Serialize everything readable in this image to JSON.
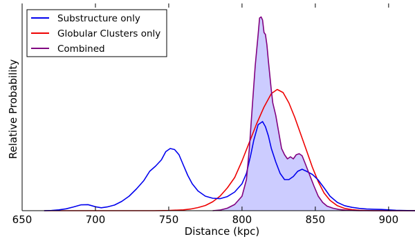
{
  "chart_data": {
    "type": "line",
    "title": "",
    "xlabel": "Distance (kpc)",
    "ylabel": "Relative Probability",
    "xlim": [
      650,
      918
    ],
    "ylim": [
      0,
      1.0
    ],
    "xticks": [
      650,
      700,
      750,
      800,
      850,
      900
    ],
    "show_yticks": false,
    "grid": false,
    "legend_position": "top-left",
    "series": [
      {
        "name": "Substructure only",
        "color": "#0000ee",
        "shaded": false,
        "points": [
          [
            665,
            0.0
          ],
          [
            670,
            0.001
          ],
          [
            675,
            0.004
          ],
          [
            680,
            0.009
          ],
          [
            685,
            0.018
          ],
          [
            690,
            0.028
          ],
          [
            695,
            0.029
          ],
          [
            700,
            0.019
          ],
          [
            704,
            0.014
          ],
          [
            708,
            0.018
          ],
          [
            713,
            0.027
          ],
          [
            718,
            0.045
          ],
          [
            723,
            0.07
          ],
          [
            728,
            0.105
          ],
          [
            733,
            0.145
          ],
          [
            737,
            0.19
          ],
          [
            741,
            0.215
          ],
          [
            745,
            0.245
          ],
          [
            748,
            0.285
          ],
          [
            751,
            0.3
          ],
          [
            754,
            0.295
          ],
          [
            757,
            0.27
          ],
          [
            760,
            0.22
          ],
          [
            763,
            0.17
          ],
          [
            766,
            0.13
          ],
          [
            770,
            0.095
          ],
          [
            775,
            0.07
          ],
          [
            780,
            0.06
          ],
          [
            785,
            0.058
          ],
          [
            790,
            0.068
          ],
          [
            795,
            0.09
          ],
          [
            800,
            0.13
          ],
          [
            803,
            0.18
          ],
          [
            806,
            0.27
          ],
          [
            808,
            0.34
          ],
          [
            811,
            0.415
          ],
          [
            814,
            0.43
          ],
          [
            816,
            0.405
          ],
          [
            818,
            0.36
          ],
          [
            820,
            0.3
          ],
          [
            823,
            0.235
          ],
          [
            826,
            0.18
          ],
          [
            829,
            0.15
          ],
          [
            832,
            0.15
          ],
          [
            835,
            0.165
          ],
          [
            838,
            0.19
          ],
          [
            841,
            0.2
          ],
          [
            844,
            0.19
          ],
          [
            848,
            0.175
          ],
          [
            852,
            0.148
          ],
          [
            856,
            0.11
          ],
          [
            860,
            0.07
          ],
          [
            865,
            0.04
          ],
          [
            870,
            0.024
          ],
          [
            875,
            0.016
          ],
          [
            880,
            0.011
          ],
          [
            885,
            0.008
          ],
          [
            890,
            0.007
          ],
          [
            895,
            0.006
          ],
          [
            900,
            0.004
          ],
          [
            905,
            0.002
          ],
          [
            910,
            0.001
          ],
          [
            918,
            0.0
          ]
        ]
      },
      {
        "name": "Globular Clusters only",
        "color": "#ee0000",
        "shaded": false,
        "points": [
          [
            665,
            0.0
          ],
          [
            700,
            0.0
          ],
          [
            740,
            0.0
          ],
          [
            750,
            0.001
          ],
          [
            760,
            0.004
          ],
          [
            765,
            0.008
          ],
          [
            770,
            0.015
          ],
          [
            775,
            0.025
          ],
          [
            780,
            0.043
          ],
          [
            785,
            0.07
          ],
          [
            790,
            0.11
          ],
          [
            795,
            0.16
          ],
          [
            800,
            0.24
          ],
          [
            805,
            0.33
          ],
          [
            810,
            0.42
          ],
          [
            815,
            0.5
          ],
          [
            820,
            0.565
          ],
          [
            824,
            0.585
          ],
          [
            828,
            0.57
          ],
          [
            832,
            0.52
          ],
          [
            836,
            0.45
          ],
          [
            840,
            0.37
          ],
          [
            844,
            0.29
          ],
          [
            848,
            0.21
          ],
          [
            852,
            0.14
          ],
          [
            856,
            0.085
          ],
          [
            860,
            0.05
          ],
          [
            865,
            0.024
          ],
          [
            870,
            0.011
          ],
          [
            875,
            0.005
          ],
          [
            880,
            0.002
          ],
          [
            890,
            0.0
          ],
          [
            918,
            0.0
          ]
        ]
      },
      {
        "name": "Combined",
        "color": "#800080",
        "shaded": true,
        "fill_color": "#ccccff",
        "points": [
          [
            780,
            0.0
          ],
          [
            785,
            0.003
          ],
          [
            790,
            0.012
          ],
          [
            795,
            0.03
          ],
          [
            800,
            0.07
          ],
          [
            803,
            0.15
          ],
          [
            805,
            0.3
          ],
          [
            807,
            0.5
          ],
          [
            809,
            0.7
          ],
          [
            811,
            0.85
          ],
          [
            812,
            0.93
          ],
          [
            813,
            0.935
          ],
          [
            814,
            0.92
          ],
          [
            815,
            0.86
          ],
          [
            816,
            0.85
          ],
          [
            817,
            0.8
          ],
          [
            818,
            0.72
          ],
          [
            819,
            0.65
          ],
          [
            820,
            0.58
          ],
          [
            821,
            0.52
          ],
          [
            823,
            0.46
          ],
          [
            825,
            0.38
          ],
          [
            827,
            0.3
          ],
          [
            829,
            0.27
          ],
          [
            831,
            0.25
          ],
          [
            833,
            0.26
          ],
          [
            835,
            0.25
          ],
          [
            837,
            0.27
          ],
          [
            839,
            0.275
          ],
          [
            841,
            0.265
          ],
          [
            843,
            0.23
          ],
          [
            846,
            0.175
          ],
          [
            849,
            0.12
          ],
          [
            852,
            0.07
          ],
          [
            855,
            0.04
          ],
          [
            858,
            0.022
          ],
          [
            862,
            0.012
          ],
          [
            866,
            0.006
          ],
          [
            870,
            0.003
          ],
          [
            875,
            0.001
          ],
          [
            880,
            0.0
          ],
          [
            918,
            0.0
          ]
        ]
      }
    ]
  }
}
